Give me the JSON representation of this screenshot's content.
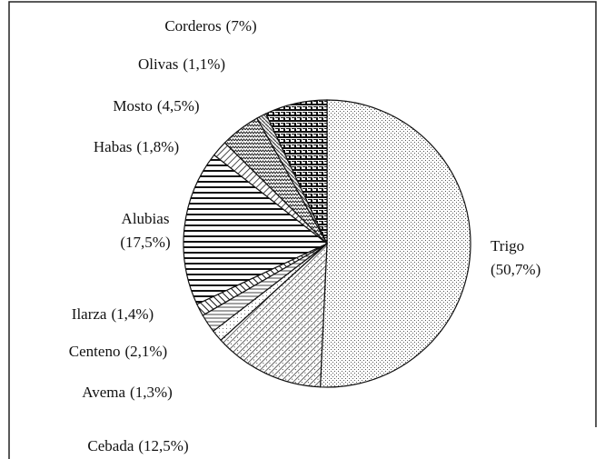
{
  "chart_data": {
    "type": "pie",
    "categories": [
      "Trigo",
      "Cebada",
      "Avema",
      "Centeno",
      "Ilarza",
      "Alubias",
      "Habas",
      "Mosto",
      "Olivas",
      "Corderos"
    ],
    "values": [
      50.7,
      12.5,
      1.3,
      2.1,
      1.4,
      17.5,
      1.8,
      4.5,
      1.1,
      7
    ],
    "value_labels": [
      "(50,7%)",
      "(12,5%)",
      "(1,3%)",
      "(2,1%)",
      "(1,4%)",
      "(17,5%)",
      "(1,8%)",
      "(4,5%)",
      "(1,1%)",
      "(7%)"
    ]
  }
}
